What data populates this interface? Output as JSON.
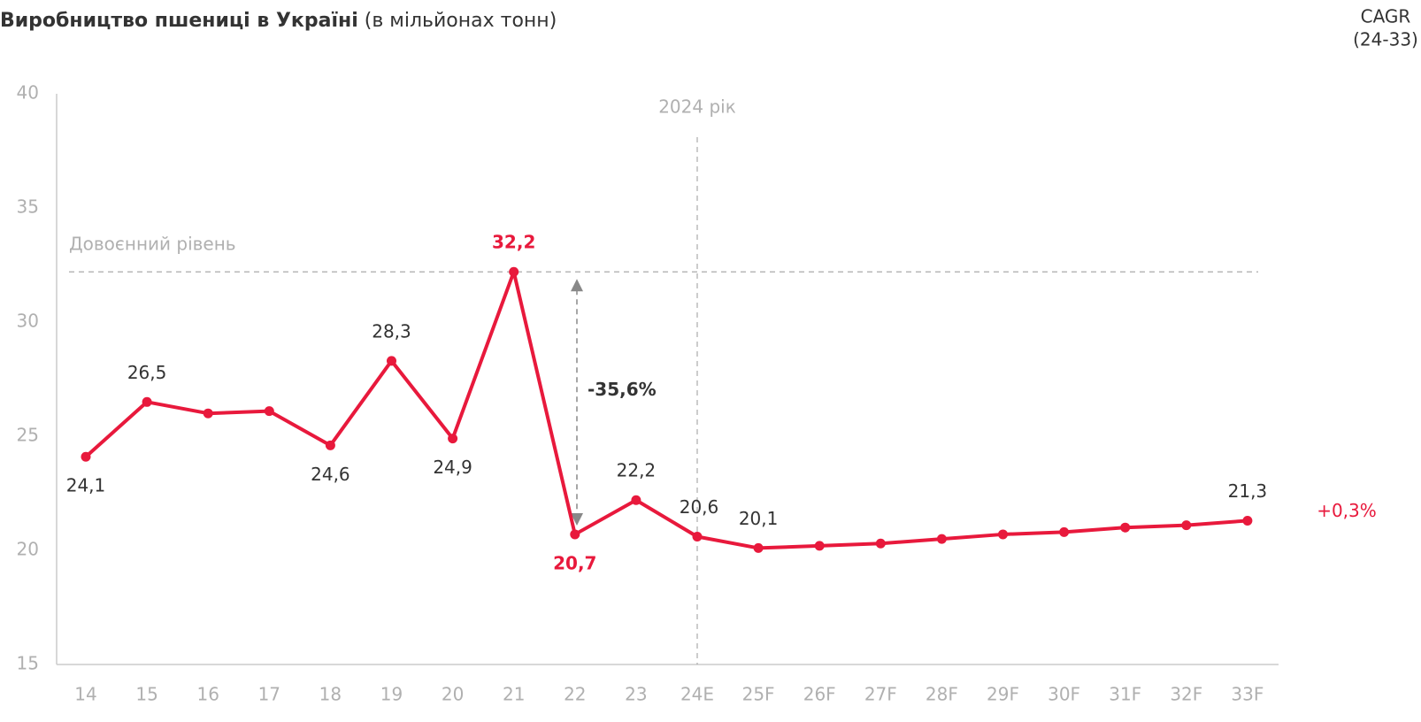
{
  "chart_data": {
    "type": "line",
    "title": "Виробництво пшениці в Україні",
    "subtitle": "(в мільйонах тонн)",
    "categories": [
      "14",
      "15",
      "16",
      "17",
      "18",
      "19",
      "20",
      "21",
      "22",
      "23",
      "24E",
      "25F",
      "26F",
      "27F",
      "28F",
      "29F",
      "30F",
      "31F",
      "32F",
      "33F"
    ],
    "values": [
      24.1,
      26.5,
      26.0,
      26.1,
      24.6,
      28.3,
      24.9,
      32.2,
      20.7,
      22.2,
      20.6,
      20.1,
      20.2,
      20.3,
      20.5,
      20.7,
      20.8,
      21.0,
      21.1,
      21.3
    ],
    "value_labels": [
      "24,1",
      "26,5",
      null,
      null,
      "24,6",
      "28,3",
      "24,9",
      "32,2",
      "20,7",
      "22,2",
      "20,6",
      "20,1",
      null,
      null,
      null,
      null,
      null,
      null,
      null,
      "21,3"
    ],
    "color": "#e8193c",
    "ylim": [
      15,
      40
    ],
    "yticks": [
      15,
      20,
      25,
      30,
      35,
      40
    ],
    "reference_line": {
      "label": "Довоєнний рівень",
      "value": 32.2
    },
    "vertical_line": {
      "label": "2024 рік",
      "category": "24E"
    },
    "change_arrow": {
      "label": "-35,6%",
      "from": 32.2,
      "to": 20.7
    },
    "cagr": {
      "title": "CAGR",
      "period": "(24-33)",
      "value_label": "+0,3%"
    }
  }
}
